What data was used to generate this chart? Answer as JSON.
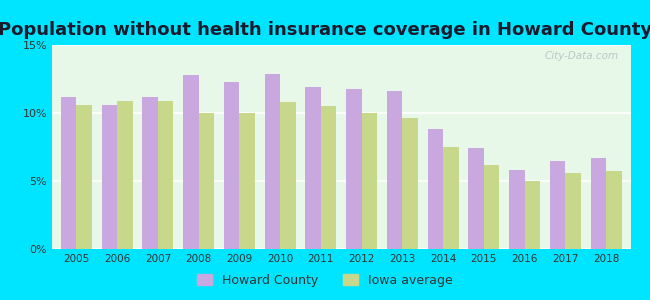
{
  "title": "Population without health insurance coverage in Howard County",
  "years": [
    2005,
    2006,
    2007,
    2008,
    2009,
    2010,
    2011,
    2012,
    2013,
    2014,
    2015,
    2016,
    2017,
    2018
  ],
  "howard_county": [
    11.2,
    10.6,
    11.2,
    12.8,
    12.3,
    12.9,
    11.9,
    11.8,
    11.6,
    8.8,
    7.4,
    5.8,
    6.5,
    6.7
  ],
  "iowa_average": [
    10.6,
    10.9,
    10.9,
    10.0,
    10.0,
    10.8,
    10.5,
    10.0,
    9.6,
    7.5,
    6.2,
    5.0,
    5.6,
    5.7
  ],
  "howard_color": "#c9a8e0",
  "iowa_color": "#c8d88a",
  "background_outer": "#00e5ff",
  "background_plot": "#e8f8e8",
  "ylim": [
    0,
    15
  ],
  "yticks": [
    0,
    5,
    10,
    15
  ],
  "ytick_labels": [
    "0%",
    "5%",
    "10%",
    "15%"
  ],
  "legend_howard": "Howard County",
  "legend_iowa": "Iowa average",
  "watermark": "City-Data.com",
  "title_fontsize": 13,
  "bar_width": 0.38
}
